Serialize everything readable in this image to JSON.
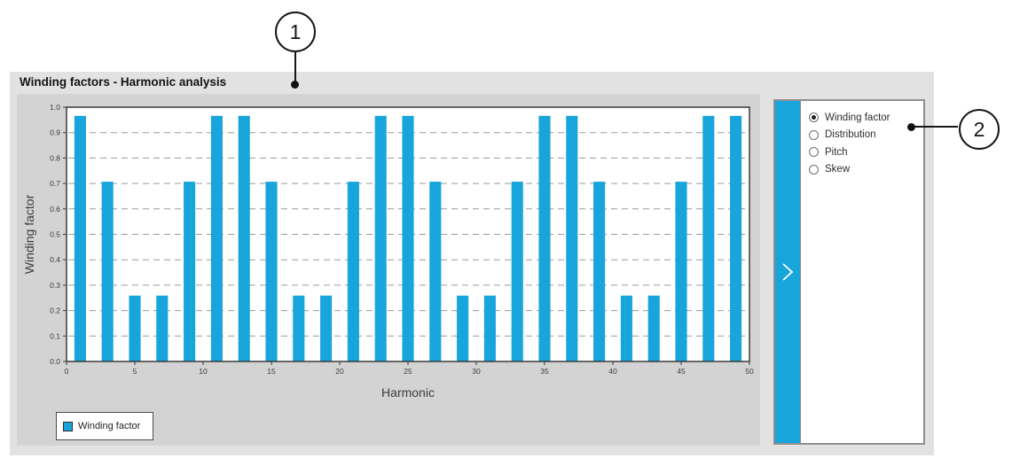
{
  "window": {
    "title": "Winding factors - Harmonic analysis"
  },
  "callouts": [
    {
      "number": "1"
    },
    {
      "number": "2"
    }
  ],
  "chart_data": {
    "type": "bar",
    "title": "Winding factors - Harmonic analysis",
    "xlabel": "Harmonic",
    "ylabel": "Winding factor",
    "xlim": [
      0,
      50
    ],
    "ylim": [
      0.0,
      1.0
    ],
    "xticks": [
      0,
      5,
      10,
      15,
      20,
      25,
      30,
      35,
      40,
      45,
      50
    ],
    "yticks": [
      0.0,
      0.1,
      0.2,
      0.3,
      0.4,
      0.5,
      0.6,
      0.7,
      0.8,
      0.9,
      1.0
    ],
    "ytick_labels": [
      "0.0",
      "0.1",
      "0.2",
      "0.3",
      "0.4",
      "0.5",
      "0.6",
      "0.7",
      "0.8",
      "0.9",
      "1.0"
    ],
    "grid": "horizontal-dashed",
    "legend": {
      "position": "bottom-left",
      "label": "Winding factor"
    },
    "bar_color": "#17a5db",
    "bar_width_units": 0.85,
    "series": [
      {
        "name": "Winding factor",
        "x": [
          1,
          3,
          5,
          7,
          9,
          11,
          13,
          15,
          17,
          19,
          21,
          23,
          25,
          27,
          29,
          31,
          33,
          35,
          37,
          39,
          41,
          43,
          45,
          47,
          49
        ],
        "values": [
          0.966,
          0.707,
          0.259,
          0.259,
          0.707,
          0.966,
          0.966,
          0.707,
          0.259,
          0.259,
          0.707,
          0.966,
          0.966,
          0.707,
          0.259,
          0.259,
          0.707,
          0.966,
          0.966,
          0.707,
          0.259,
          0.259,
          0.707,
          0.966,
          0.966
        ]
      }
    ]
  },
  "side_panel": {
    "expander_icon": "chevron-right",
    "options": [
      {
        "label": "Winding factor",
        "selected": true
      },
      {
        "label": "Distribution",
        "selected": false
      },
      {
        "label": "Pitch",
        "selected": false
      },
      {
        "label": "Skew",
        "selected": false
      }
    ]
  },
  "colors": {
    "accent": "#17a5db",
    "panel_bg": "#e2e2e2",
    "chart_bg": "#d3d3d3",
    "plot_border": "#3a3a3a",
    "grid": "#9a9a9a",
    "axis_text": "#3d3d3d"
  }
}
